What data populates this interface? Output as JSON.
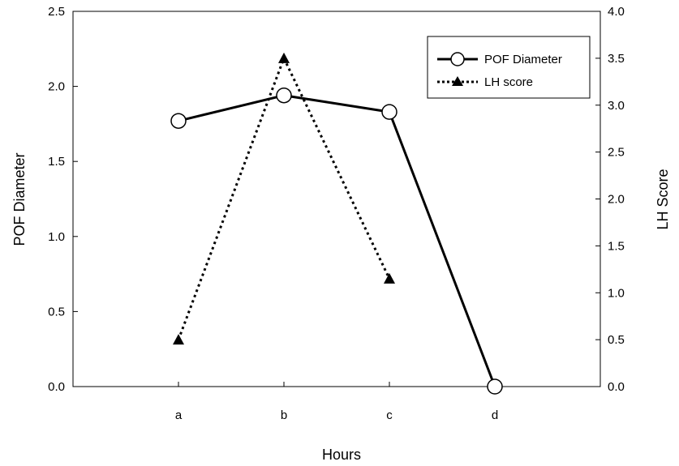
{
  "chart_data": {
    "type": "line",
    "categories": [
      "a",
      "b",
      "c",
      "d"
    ],
    "xlabel": "Hours",
    "ylabel_left": "POF Diameter",
    "ylabel_right": "LH Score",
    "ylim_left": [
      0,
      2.5
    ],
    "ylim_right": [
      0,
      4.0
    ],
    "yticks_left": [
      "0.0",
      "0.5",
      "1.0",
      "1.5",
      "2.0",
      "2.5"
    ],
    "yticks_right": [
      "0.0",
      "0.5",
      "1.0",
      "1.5",
      "2.0",
      "2.5",
      "3.0",
      "3.5",
      "4.0"
    ],
    "grid": false,
    "legend_position": "top-right",
    "series": [
      {
        "name": "POF Diameter",
        "axis": "left",
        "line_style": "solid",
        "marker": "open-circle",
        "values": [
          1.77,
          1.94,
          1.83,
          0.0
        ],
        "color": "#000000"
      },
      {
        "name": "LH score",
        "axis": "right",
        "line_style": "dotted",
        "marker": "filled-triangle",
        "values": [
          0.5,
          3.5,
          1.15,
          null
        ],
        "color": "#000000"
      }
    ]
  }
}
